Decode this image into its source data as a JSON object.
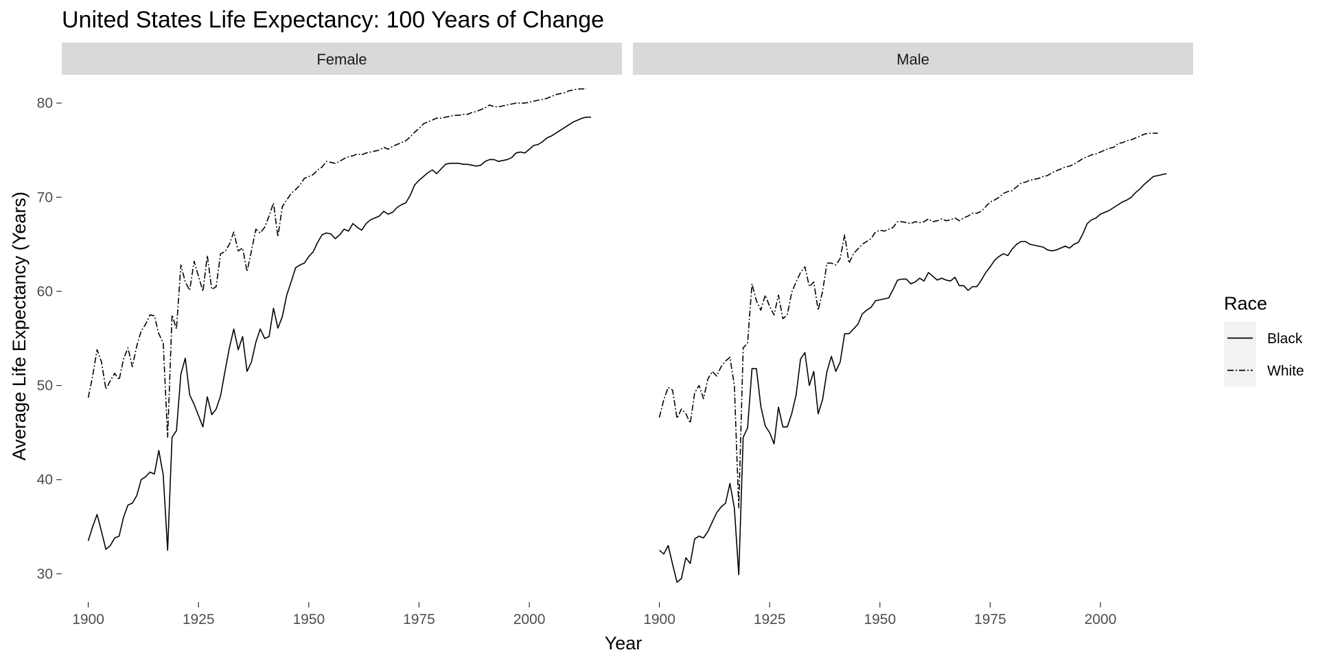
{
  "chart_data": {
    "type": "line",
    "title": "United States Life Expectancy: 100 Years of Change",
    "xlabel": "Year",
    "ylabel": "Average Life Expectancy (Years)",
    "xlim": [
      1894,
      2021
    ],
    "ylim": [
      27,
      83
    ],
    "x_ticks": [
      1900,
      1925,
      1950,
      1975,
      2000
    ],
    "y_ticks": [
      30,
      40,
      50,
      60,
      70,
      80
    ],
    "grid": false,
    "legend": {
      "title": "Race",
      "position": "right",
      "entries": [
        {
          "label": "Black",
          "linetype": "solid"
        },
        {
          "label": "White",
          "linetype": "dashdot"
        }
      ]
    },
    "colors": {
      "line": "#000000",
      "strip": "#d9d9d9",
      "legend_key": "#f2f2f2",
      "tick": "#4d4d4d"
    },
    "x_start": 1900,
    "panels": [
      {
        "label": "Female",
        "series": [
          {
            "name": "Black",
            "linetype": "solid",
            "values": [
              33.5,
              35.0,
              36.3,
              34.5,
              32.6,
              33.0,
              33.8,
              34.0,
              36.0,
              37.3,
              37.5,
              38.3,
              40.0,
              40.3,
              40.8,
              40.6,
              43.1,
              40.5,
              32.5,
              44.5,
              45.2,
              51.2,
              52.9,
              49.0,
              48.0,
              46.8,
              45.6,
              48.8,
              46.9,
              47.5,
              48.9,
              51.5,
              54.0,
              56.0,
              53.8,
              55.2,
              51.5,
              52.5,
              54.6,
              56.0,
              55.0,
              55.2,
              58.2,
              56.1,
              57.3,
              59.6,
              61.0,
              62.5,
              62.8,
              63.0,
              63.7,
              64.2,
              65.2,
              66.0,
              66.2,
              66.1,
              65.6,
              66.0,
              66.6,
              66.4,
              67.2,
              66.8,
              66.5,
              67.2,
              67.6,
              67.8,
              68.0,
              68.5,
              68.2,
              68.4,
              68.9,
              69.2,
              69.4,
              70.2,
              71.3,
              71.8,
              72.2,
              72.6,
              72.9,
              72.5,
              73.0,
              73.5,
              73.6,
              73.6,
              73.6,
              73.5,
              73.5,
              73.4,
              73.3,
              73.4,
              73.8,
              74.0,
              74.0,
              73.8,
              73.9,
              74.0,
              74.2,
              74.7,
              74.8,
              74.7,
              75.1,
              75.5,
              75.6,
              75.9,
              76.3,
              76.5,
              76.8,
              77.1,
              77.4,
              77.7,
              78.0,
              78.2,
              78.4,
              78.5,
              78.5
            ]
          },
          {
            "name": "White",
            "linetype": "dashdot",
            "values": [
              48.7,
              51.0,
              53.8,
              52.5,
              49.6,
              50.5,
              51.3,
              50.6,
              52.8,
              54.0,
              52.0,
              54.2,
              55.8,
              56.5,
              57.5,
              57.4,
              55.5,
              54.5,
              44.5,
              57.5,
              56.0,
              62.8,
              61.0,
              60.1,
              63.2,
              61.6,
              60.0,
              63.8,
              60.2,
              60.5,
              64.0,
              64.2,
              65.0,
              66.3,
              64.3,
              64.6,
              62.1,
              64.3,
              66.6,
              66.2,
              66.8,
              68.0,
              69.4,
              65.8,
              69.0,
              69.7,
              70.4,
              70.8,
              71.3,
              72.0,
              72.2,
              72.4,
              72.9,
              73.2,
              73.8,
              73.7,
              73.6,
              73.8,
              74.1,
              74.3,
              74.4,
              74.6,
              74.5,
              74.7,
              74.8,
              74.9,
              75.0,
              75.3,
              75.1,
              75.4,
              75.6,
              75.8,
              76.0,
              76.4,
              76.9,
              77.3,
              77.8,
              78.0,
              78.2,
              78.4,
              78.4,
              78.5,
              78.6,
              78.7,
              78.7,
              78.8,
              78.8,
              79.0,
              79.1,
              79.3,
              79.5,
              79.8,
              79.6,
              79.6,
              79.7,
              79.8,
              79.9,
              80.0,
              80.0,
              80.0,
              80.1,
              80.2,
              80.3,
              80.4,
              80.5,
              80.7,
              80.9,
              81.0,
              81.1,
              81.3,
              81.4,
              81.5,
              81.5,
              81.5
            ]
          }
        ]
      },
      {
        "label": "Male",
        "series": [
          {
            "name": "Black",
            "linetype": "solid",
            "values": [
              32.5,
              32.1,
              33.0,
              31.0,
              29.1,
              29.5,
              31.7,
              31.1,
              33.7,
              34.0,
              33.8,
              34.5,
              35.5,
              36.5,
              37.1,
              37.5,
              39.6,
              37.0,
              29.9,
              44.5,
              45.5,
              51.8,
              51.8,
              47.8,
              45.7,
              45.0,
              43.8,
              47.7,
              45.6,
              45.6,
              47.0,
              49.0,
              52.8,
              53.5,
              50.0,
              51.5,
              47.0,
              48.5,
              51.5,
              53.1,
              51.5,
              52.5,
              55.5,
              55.5,
              56.0,
              56.5,
              57.6,
              58.0,
              58.3,
              59.0,
              59.1,
              59.2,
              59.3,
              60.2,
              61.2,
              61.3,
              61.3,
              60.8,
              61.0,
              61.4,
              61.1,
              62.0,
              61.6,
              61.2,
              61.4,
              61.2,
              61.1,
              61.5,
              60.6,
              60.6,
              60.1,
              60.5,
              60.5,
              61.2,
              62.0,
              62.6,
              63.3,
              63.7,
              64.0,
              63.8,
              64.5,
              65.0,
              65.3,
              65.3,
              65.0,
              64.9,
              64.8,
              64.7,
              64.4,
              64.3,
              64.4,
              64.6,
              64.8,
              64.6,
              65.0,
              65.2,
              66.1,
              67.2,
              67.6,
              67.8,
              68.2,
              68.4,
              68.6,
              68.9,
              69.2,
              69.5,
              69.7,
              70.0,
              70.5,
              70.9,
              71.4,
              71.8,
              72.2,
              72.3,
              72.4,
              72.5
            ]
          },
          {
            "name": "White",
            "linetype": "dashdot",
            "values": [
              46.6,
              48.5,
              49.8,
              49.5,
              46.5,
              47.5,
              47.0,
              46.0,
              49.2,
              50.0,
              48.6,
              50.7,
              51.5,
              51.0,
              52.0,
              52.6,
              53.0,
              50.0,
              37.0,
              54.0,
              54.5,
              60.8,
              59.0,
              58.0,
              59.6,
              58.4,
              57.5,
              59.6,
              57.1,
              57.5,
              59.9,
              61.0,
              62.0,
              62.6,
              60.5,
              61.0,
              58.0,
              60.0,
              63.0,
              63.0,
              62.8,
              63.5,
              66.0,
              63.0,
              64.0,
              64.5,
              65.0,
              65.3,
              65.6,
              66.3,
              66.5,
              66.4,
              66.6,
              66.8,
              67.4,
              67.4,
              67.3,
              67.2,
              67.4,
              67.3,
              67.4,
              67.7,
              67.4,
              67.5,
              67.7,
              67.5,
              67.6,
              67.8,
              67.5,
              67.8,
              68.0,
              68.3,
              68.3,
              68.5,
              69.0,
              69.5,
              69.7,
              70.0,
              70.4,
              70.6,
              70.7,
              71.1,
              71.5,
              71.6,
              71.8,
              71.9,
              72.0,
              72.2,
              72.3,
              72.6,
              72.8,
              73.0,
              73.2,
              73.3,
              73.5,
              73.8,
              74.1,
              74.3,
              74.5,
              74.6,
              74.8,
              75.0,
              75.2,
              75.3,
              75.7,
              75.8,
              76.0,
              76.1,
              76.3,
              76.5,
              76.7,
              76.8,
              76.8,
              76.8
            ]
          }
        ]
      }
    ]
  }
}
